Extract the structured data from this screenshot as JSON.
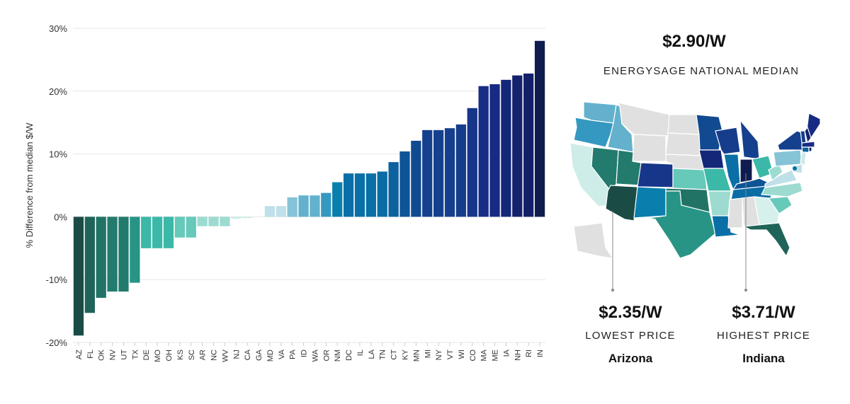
{
  "chart_data": {
    "type": "bar",
    "title": "",
    "xlabel": "",
    "ylabel": "% Difference from median $/W",
    "ylim": [
      -20,
      30
    ],
    "yticks": [
      "30%",
      "20%",
      "10%",
      "0%",
      "-10%",
      "-20%"
    ],
    "ytick_values": [
      30,
      20,
      10,
      0,
      -10,
      -20
    ],
    "grid": true,
    "categories": [
      "AZ",
      "FL",
      "OK",
      "NV",
      "UT",
      "TX",
      "DE",
      "MO",
      "OH",
      "KS",
      "SC",
      "AR",
      "NC",
      "WV",
      "NJ",
      "CA",
      "GA",
      "MD",
      "VA",
      "PA",
      "ID",
      "WA",
      "OR",
      "NM",
      "DC",
      "IL",
      "LA",
      "TN",
      "CT",
      "KY",
      "MN",
      "MI",
      "NY",
      "VT",
      "WI",
      "CO",
      "MA",
      "ME",
      "IA",
      "NH",
      "RI",
      "IN"
    ],
    "values": [
      -18.9,
      -15.3,
      -12.9,
      -11.9,
      -11.9,
      -10.5,
      -5.0,
      -5.0,
      -5.0,
      -3.3,
      -3.3,
      -1.5,
      -1.5,
      -1.5,
      -0.3,
      -0.2,
      0,
      1.7,
      1.7,
      3.1,
      3.4,
      3.4,
      3.8,
      5.5,
      6.9,
      6.9,
      6.9,
      7.2,
      8.7,
      10.4,
      12.1,
      13.8,
      13.8,
      14.1,
      14.7,
      17.3,
      20.8,
      21.1,
      21.8,
      22.5,
      22.8,
      28.0
    ],
    "color_scale": [
      [
        -19,
        "#1b4a44"
      ],
      [
        -12,
        "#22796b"
      ],
      [
        -10,
        "#2a9d8f"
      ],
      [
        -5,
        "#3cb8a8"
      ],
      [
        -3,
        "#6dccbc"
      ],
      [
        -1.5,
        "#9ddbd0"
      ],
      [
        0,
        "#d6f0ec"
      ],
      [
        1.7,
        "#bfe0e8"
      ],
      [
        3.1,
        "#86c3d6"
      ],
      [
        3.8,
        "#3598c0"
      ],
      [
        5.5,
        "#0a7fad"
      ],
      [
        7,
        "#0a6ea6"
      ],
      [
        10.4,
        "#0e5496"
      ],
      [
        14,
        "#153f8c"
      ],
      [
        21,
        "#172c86"
      ],
      [
        23,
        "#131f66"
      ],
      [
        28,
        "#0f1c4f"
      ]
    ],
    "no_data_color": "#e0e0e0"
  },
  "summary": {
    "median_value": "$2.90/W",
    "median_label": "ENERGYSAGE NATIONAL MEDIAN",
    "lowest_value": "$2.35/W",
    "lowest_label": "LOWEST PRICE",
    "lowest_state": "Arizona",
    "highest_value": "$3.71/W",
    "highest_label": "HIGHEST PRICE",
    "highest_state": "Indiana"
  }
}
